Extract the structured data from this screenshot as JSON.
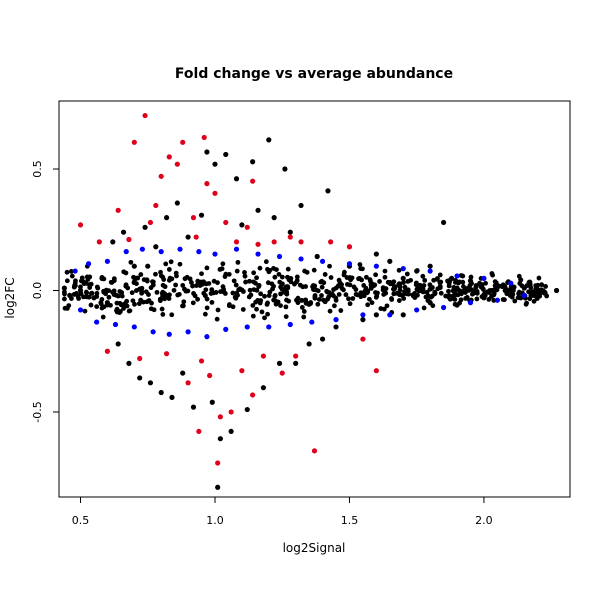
{
  "chart_data": {
    "type": "scatter",
    "title": "Fold change vs average abundance",
    "xlabel": "log2Signal",
    "ylabel": "log2FC",
    "xlim": [
      0.42,
      2.32
    ],
    "ylim": [
      -0.85,
      0.78
    ],
    "x_ticks": [
      0.5,
      1.0,
      1.5,
      2.0
    ],
    "x_tick_labels": [
      "0.5",
      "1.0",
      "1.5",
      "2.0"
    ],
    "y_ticks": [
      -0.5,
      0.0,
      0.5
    ],
    "y_tick_labels": [
      "-0.5",
      "0.0",
      "0.5"
    ],
    "grid": false,
    "legend": "none",
    "colors": {
      "black": "#000000",
      "blue": "#0000ff",
      "red": "#e0001b"
    },
    "series": [
      {
        "color": "black",
        "points": [
          [
            0.44,
            0.01
          ],
          [
            0.46,
            -0.02
          ],
          [
            0.48,
            0.02
          ],
          [
            0.5,
            0.0
          ],
          [
            0.52,
            0.03
          ],
          [
            0.55,
            -0.03
          ],
          [
            0.58,
            0.05
          ],
          [
            0.6,
            -0.05
          ],
          [
            0.62,
            0.2
          ],
          [
            0.64,
            -0.22
          ],
          [
            0.66,
            0.24
          ],
          [
            0.68,
            -0.3
          ],
          [
            0.7,
            0.1
          ],
          [
            0.72,
            -0.36
          ],
          [
            0.74,
            0.26
          ],
          [
            0.76,
            -0.38
          ],
          [
            0.78,
            0.18
          ],
          [
            0.8,
            -0.42
          ],
          [
            0.82,
            0.3
          ],
          [
            0.84,
            -0.44
          ],
          [
            0.86,
            0.36
          ],
          [
            0.88,
            -0.34
          ],
          [
            0.9,
            0.22
          ],
          [
            0.92,
            -0.48
          ],
          [
            0.95,
            0.31
          ],
          [
            0.97,
            0.57
          ],
          [
            0.99,
            -0.46
          ],
          [
            1.0,
            0.52
          ],
          [
            1.02,
            -0.61
          ],
          [
            1.04,
            0.56
          ],
          [
            1.06,
            -0.58
          ],
          [
            1.08,
            0.46
          ],
          [
            1.1,
            0.27
          ],
          [
            1.12,
            -0.49
          ],
          [
            1.14,
            0.53
          ],
          [
            1.16,
            0.33
          ],
          [
            1.18,
            -0.4
          ],
          [
            1.2,
            0.62
          ],
          [
            1.22,
            0.3
          ],
          [
            1.24,
            -0.3
          ],
          [
            1.26,
            0.5
          ],
          [
            1.28,
            0.24
          ],
          [
            1.3,
            -0.3
          ],
          [
            1.32,
            0.35
          ],
          [
            1.35,
            -0.22
          ],
          [
            1.38,
            0.14
          ],
          [
            1.42,
            0.41
          ],
          [
            1.45,
            -0.15
          ],
          [
            1.5,
            0.1
          ],
          [
            1.55,
            -0.12
          ],
          [
            1.6,
            0.15
          ],
          [
            1.65,
            0.12
          ],
          [
            1.7,
            -0.1
          ],
          [
            1.75,
            0.08
          ],
          [
            1.8,
            -0.05
          ],
          [
            1.85,
            0.28
          ],
          [
            1.88,
            0.05
          ],
          [
            1.9,
            -0.06
          ],
          [
            1.95,
            0.04
          ],
          [
            2.0,
            -0.03
          ],
          [
            2.05,
            0.02
          ],
          [
            2.1,
            -0.02
          ],
          [
            2.15,
            0.01
          ],
          [
            2.2,
            0.0
          ],
          [
            2.27,
            0.0
          ],
          [
            1.01,
            -0.81
          ],
          [
            0.75,
            0.1
          ],
          [
            1.4,
            -0.2
          ],
          [
            1.6,
            -0.1
          ],
          [
            1.7,
            0.05
          ],
          [
            1.8,
            0.1
          ]
        ]
      },
      {
        "color": "blue",
        "points": [
          [
            0.48,
            0.08
          ],
          [
            0.5,
            -0.08
          ],
          [
            0.53,
            0.11
          ],
          [
            0.56,
            -0.13
          ],
          [
            0.6,
            0.12
          ],
          [
            0.63,
            -0.14
          ],
          [
            0.67,
            0.16
          ],
          [
            0.7,
            -0.15
          ],
          [
            0.73,
            0.17
          ],
          [
            0.77,
            -0.17
          ],
          [
            0.8,
            0.16
          ],
          [
            0.83,
            -0.18
          ],
          [
            0.87,
            0.17
          ],
          [
            0.9,
            -0.17
          ],
          [
            0.94,
            0.16
          ],
          [
            0.97,
            -0.19
          ],
          [
            1.0,
            0.15
          ],
          [
            1.04,
            -0.16
          ],
          [
            1.08,
            0.17
          ],
          [
            1.12,
            -0.15
          ],
          [
            1.16,
            0.15
          ],
          [
            1.2,
            -0.15
          ],
          [
            1.24,
            0.14
          ],
          [
            1.28,
            -0.14
          ],
          [
            1.32,
            0.13
          ],
          [
            1.36,
            -0.13
          ],
          [
            1.4,
            0.12
          ],
          [
            1.45,
            -0.12
          ],
          [
            1.5,
            0.11
          ],
          [
            1.55,
            -0.1
          ],
          [
            1.6,
            0.1
          ],
          [
            1.65,
            -0.1
          ],
          [
            1.7,
            0.09
          ],
          [
            1.75,
            -0.08
          ],
          [
            1.8,
            0.08
          ],
          [
            1.85,
            -0.07
          ],
          [
            1.9,
            0.06
          ],
          [
            1.95,
            -0.05
          ],
          [
            2.0,
            0.05
          ],
          [
            2.05,
            -0.04
          ],
          [
            2.1,
            0.03
          ],
          [
            2.15,
            -0.02
          ]
        ]
      },
      {
        "color": "red",
        "points": [
          [
            0.5,
            0.27
          ],
          [
            0.57,
            0.2
          ],
          [
            0.6,
            -0.25
          ],
          [
            0.64,
            0.33
          ],
          [
            0.68,
            0.21
          ],
          [
            0.7,
            0.61
          ],
          [
            0.72,
            -0.28
          ],
          [
            0.74,
            0.72
          ],
          [
            0.76,
            0.28
          ],
          [
            0.78,
            0.35
          ],
          [
            0.8,
            0.47
          ],
          [
            0.82,
            -0.26
          ],
          [
            0.83,
            0.55
          ],
          [
            0.86,
            0.52
          ],
          [
            0.88,
            0.61
          ],
          [
            0.9,
            -0.38
          ],
          [
            0.92,
            0.3
          ],
          [
            0.93,
            0.22
          ],
          [
            0.95,
            -0.29
          ],
          [
            0.96,
            0.63
          ],
          [
            0.98,
            -0.35
          ],
          [
            1.0,
            0.4
          ],
          [
            1.02,
            -0.52
          ],
          [
            1.04,
            0.28
          ],
          [
            1.06,
            -0.5
          ],
          [
            1.08,
            0.2
          ],
          [
            1.1,
            -0.33
          ],
          [
            1.12,
            0.26
          ],
          [
            1.14,
            -0.43
          ],
          [
            1.16,
            0.19
          ],
          [
            1.18,
            -0.27
          ],
          [
            1.22,
            0.2
          ],
          [
            1.25,
            -0.34
          ],
          [
            1.28,
            0.22
          ],
          [
            1.3,
            -0.27
          ],
          [
            1.32,
            0.2
          ],
          [
            1.37,
            -0.66
          ],
          [
            1.43,
            0.2
          ],
          [
            1.5,
            0.18
          ],
          [
            1.55,
            -0.2
          ],
          [
            1.6,
            -0.33
          ],
          [
            0.94,
            -0.58
          ],
          [
            1.01,
            -0.71
          ],
          [
            0.97,
            0.44
          ],
          [
            1.14,
            0.45
          ]
        ]
      }
    ]
  }
}
